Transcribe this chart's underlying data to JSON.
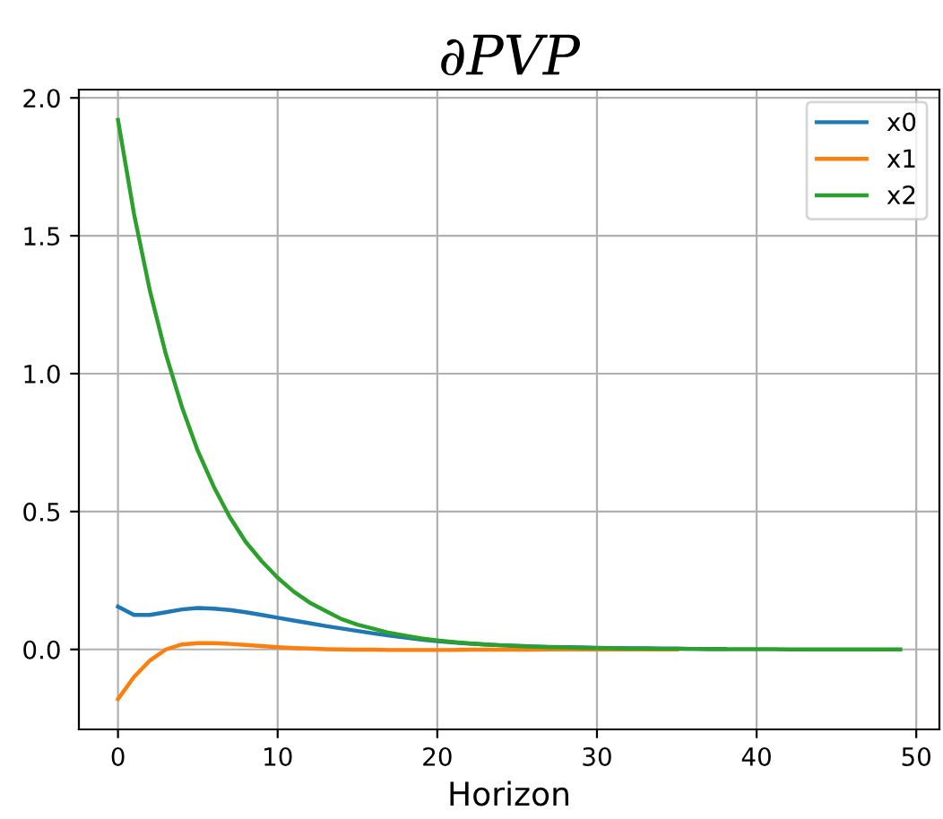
{
  "chart_data": {
    "type": "line",
    "title": "∂PVP",
    "xlabel": "Horizon",
    "x": [
      0,
      1,
      2,
      3,
      4,
      5,
      6,
      7,
      8,
      9,
      10,
      11,
      12,
      13,
      14,
      15,
      16,
      17,
      18,
      19,
      20,
      21,
      22,
      23,
      24,
      25,
      26,
      27,
      28,
      29,
      30,
      31,
      32,
      33,
      34,
      35,
      36,
      37,
      38,
      39,
      40,
      41,
      42,
      43,
      44,
      45,
      46,
      47,
      48,
      49
    ],
    "series": [
      {
        "name": "x0",
        "color": "#1f77b4",
        "values": [
          0.155,
          0.125,
          0.125,
          0.135,
          0.145,
          0.15,
          0.148,
          0.143,
          0.135,
          0.125,
          0.115,
          0.105,
          0.095,
          0.085,
          0.076,
          0.067,
          0.058,
          0.05,
          0.043,
          0.036,
          0.03,
          0.025,
          0.021,
          0.018,
          0.015,
          0.013,
          0.011,
          0.009,
          0.008,
          0.007,
          0.006,
          0.005,
          0.004,
          0.004,
          0.003,
          0.003,
          0.002,
          0.002,
          0.002,
          null,
          null,
          null,
          null,
          null,
          null,
          null,
          null,
          null,
          null,
          null
        ]
      },
      {
        "name": "x1",
        "color": "#ff7f0e",
        "values": [
          -0.18,
          -0.1,
          -0.04,
          0.0,
          0.018,
          0.023,
          0.023,
          0.02,
          0.016,
          0.012,
          0.008,
          0.005,
          0.003,
          0.001,
          0.0,
          -0.001,
          -0.001,
          -0.002,
          -0.002,
          -0.002,
          -0.002,
          -0.002,
          -0.001,
          -0.001,
          -0.001,
          -0.001,
          -0.001,
          0.0,
          0.0,
          0.0,
          0.0,
          0.0,
          0.0,
          0.0,
          0.0,
          0.0,
          null,
          null,
          null,
          null,
          null,
          null,
          null,
          null,
          null,
          null,
          null,
          null,
          null,
          null
        ]
      },
      {
        "name": "x2",
        "color": "#2ca02c",
        "values": [
          1.92,
          1.58,
          1.3,
          1.07,
          0.88,
          0.72,
          0.59,
          0.48,
          0.39,
          0.32,
          0.26,
          0.21,
          0.17,
          0.14,
          0.11,
          0.09,
          0.075,
          0.06,
          0.05,
          0.04,
          0.033,
          0.027,
          0.022,
          0.018,
          0.015,
          0.012,
          0.01,
          0.008,
          0.007,
          0.006,
          0.005,
          0.004,
          0.003,
          0.003,
          0.002,
          0.002,
          0.002,
          0.001,
          0.001,
          0.001,
          0.001,
          0.001,
          0.0,
          0.0,
          0.0,
          0.0,
          0.0,
          0.0,
          0.0,
          0.0
        ]
      }
    ],
    "xlim": [
      -2.45,
      51.45
    ],
    "ylim": [
      -0.29,
      2.03
    ],
    "xticks": [
      0,
      10,
      20,
      30,
      40,
      50
    ],
    "yticks": [
      {
        "value": 0,
        "label": "0.0"
      },
      {
        "value": 0.5,
        "label": "0.5"
      },
      {
        "value": 1,
        "label": "1.0"
      },
      {
        "value": 1.5,
        "label": "1.5"
      },
      {
        "value": 2,
        "label": "2.0"
      }
    ],
    "grid": true,
    "legend": "top right",
    "line_style": "solid",
    "marker": "none"
  }
}
